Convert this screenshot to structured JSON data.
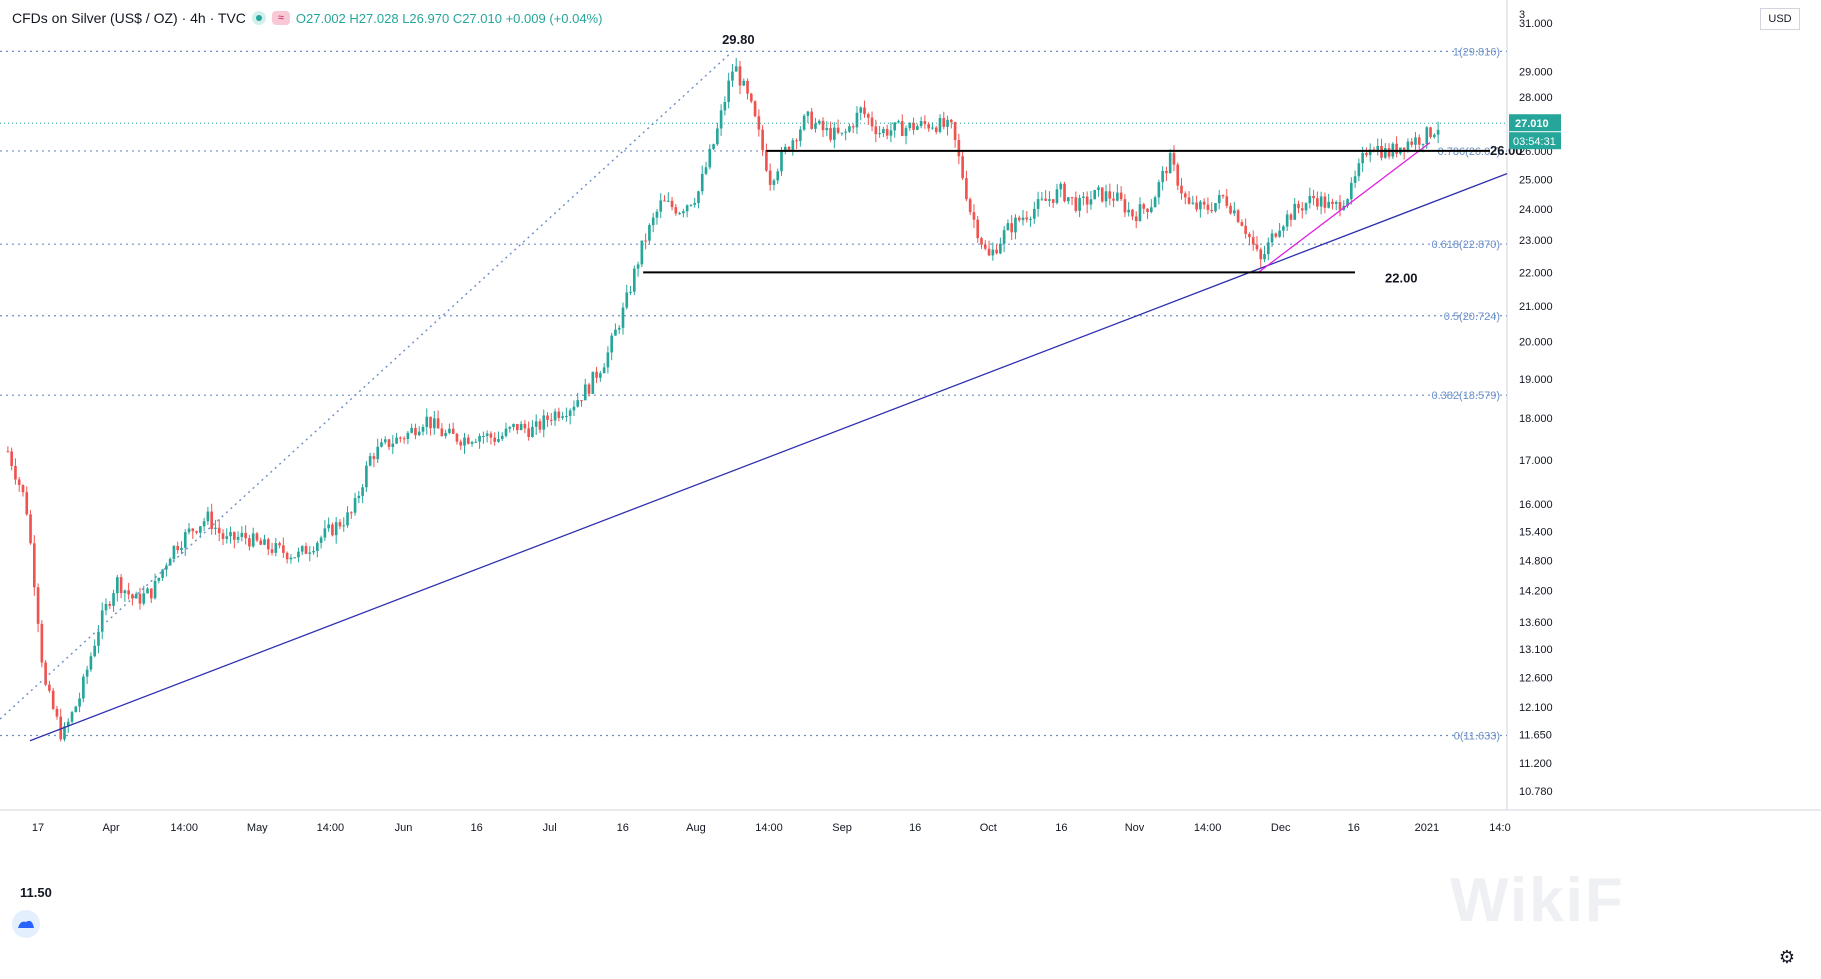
{
  "header": {
    "symbol_title": "CFDs on Silver (US$ / OZ) · 4h · TVC",
    "ohlc": {
      "o": "O27.002",
      "h": "H27.028",
      "l": "L26.970",
      "c": "C27.010",
      "chg": "+0.009 (+0.04%)"
    }
  },
  "currency_badge": "USD",
  "timer": "03:54:31",
  "watermark": "WikiF",
  "icons": {
    "status": "green-dot-icon",
    "wave": "wave-icon",
    "logo": "tradingview-cloud-icon",
    "settings": "gear-icon"
  },
  "colors": {
    "up": "#26a69a",
    "down": "#ef5350",
    "fib": "#6a8fc6",
    "trend": "#3030b0",
    "magenta": "#e020e0"
  },
  "chart_data": {
    "type": "candlestick",
    "instrument": "CFDs on Silver (US$ / OZ)",
    "interval": "4h",
    "y_scale": "log",
    "ylim": [
      10.5,
      32.0
    ],
    "price_ticks": [
      "3",
      "31.000",
      "29.000",
      "28.000",
      "26.000",
      "25.000",
      "24.000",
      "23.000",
      "22.000",
      "21.000",
      "20.000",
      "19.000",
      "18.000",
      "17.000",
      "16.000",
      "15.400",
      "14.800",
      "14.200",
      "13.600",
      "13.100",
      "12.600",
      "12.100",
      "11.650",
      "11.200",
      "10.780"
    ],
    "time_ticks": [
      "17",
      "Apr",
      "14:00",
      "May",
      "14:00",
      "Jun",
      "16",
      "Jul",
      "16",
      "Aug",
      "14:00",
      "Sep",
      "16",
      "Oct",
      "16",
      "Nov",
      "14:00",
      "Dec",
      "16",
      "2021",
      "14:0"
    ],
    "last_price": "27.010",
    "annotations": [
      "29.80",
      "26.00",
      "22.00",
      "11.50"
    ],
    "fib_levels": [
      {
        "label": "1(29.816)",
        "value": 29.816
      },
      {
        "label": "0.786(26.0..)",
        "value": 26.0
      },
      {
        "label": "0.618(22.870)",
        "value": 22.87
      },
      {
        "label": "0.5(20.724)",
        "value": 20.724
      },
      {
        "label": "0.382(18.579)",
        "value": 18.579
      },
      {
        "label": "0(11.633)",
        "value": 11.633
      }
    ],
    "horizontal_levels": [
      26.0,
      22.0
    ],
    "price_path": [
      [
        "17",
        17.2
      ],
      [
        "",
        16.0
      ],
      [
        "",
        12.5
      ],
      [
        "",
        11.6
      ],
      [
        "",
        12.3
      ],
      [
        "",
        13.5
      ],
      [
        "",
        14.4
      ],
      [
        "",
        14.0
      ],
      [
        "Apr",
        14.2
      ],
      [
        "",
        15.0
      ],
      [
        "",
        15.4
      ],
      [
        "",
        15.7
      ],
      [
        "14:00",
        15.2
      ],
      [
        "",
        15.3
      ],
      [
        "",
        15.1
      ],
      [
        "May",
        15.0
      ],
      [
        "",
        14.9
      ],
      [
        "",
        15.2
      ],
      [
        "",
        15.5
      ],
      [
        "14:00",
        15.8
      ],
      [
        "",
        17.1
      ],
      [
        "",
        17.4
      ],
      [
        "",
        17.6
      ],
      [
        "Jun",
        18.0
      ],
      [
        "",
        17.6
      ],
      [
        "",
        17.5
      ],
      [
        "16",
        17.6
      ],
      [
        "",
        17.5
      ],
      [
        "",
        17.8
      ],
      [
        "",
        17.7
      ],
      [
        "Jul",
        18.1
      ],
      [
        "",
        18.3
      ],
      [
        "",
        18.8
      ],
      [
        "",
        19.6
      ],
      [
        "16",
        21.0
      ],
      [
        "",
        22.9
      ],
      [
        "",
        24.2
      ],
      [
        "",
        24.0
      ],
      [
        "",
        24.5
      ],
      [
        "Aug",
        26.5
      ],
      [
        "",
        29.3
      ],
      [
        "",
        27.5
      ],
      [
        "",
        25.0
      ],
      [
        "14:00",
        26.2
      ],
      [
        "",
        27.2
      ],
      [
        "",
        26.7
      ],
      [
        "",
        26.5
      ],
      [
        "Sep",
        27.5
      ],
      [
        "",
        26.7
      ],
      [
        "",
        26.8
      ],
      [
        "16",
        26.9
      ],
      [
        "",
        27.0
      ],
      [
        "",
        26.8
      ],
      [
        "",
        24.0
      ],
      [
        "",
        22.4
      ],
      [
        "",
        23.3
      ],
      [
        "Oct",
        23.8
      ],
      [
        "",
        24.2
      ],
      [
        "",
        24.6
      ],
      [
        "16",
        24.1
      ],
      [
        "",
        24.5
      ],
      [
        "",
        24.4
      ],
      [
        "Nov",
        23.8
      ],
      [
        "",
        24.2
      ],
      [
        "",
        25.7
      ],
      [
        "",
        24.1
      ],
      [
        "14:00",
        24.0
      ],
      [
        "",
        24.4
      ],
      [
        "",
        23.6
      ],
      [
        "Dec",
        22.3
      ],
      [
        "",
        23.5
      ],
      [
        "",
        24.0
      ],
      [
        "",
        24.4
      ],
      [
        "",
        24.0
      ],
      [
        "16",
        24.6
      ],
      [
        "",
        26.3
      ],
      [
        "",
        25.9
      ],
      [
        "",
        26.3
      ],
      [
        "",
        26.5
      ],
      [
        "2021",
        27.0
      ]
    ]
  }
}
